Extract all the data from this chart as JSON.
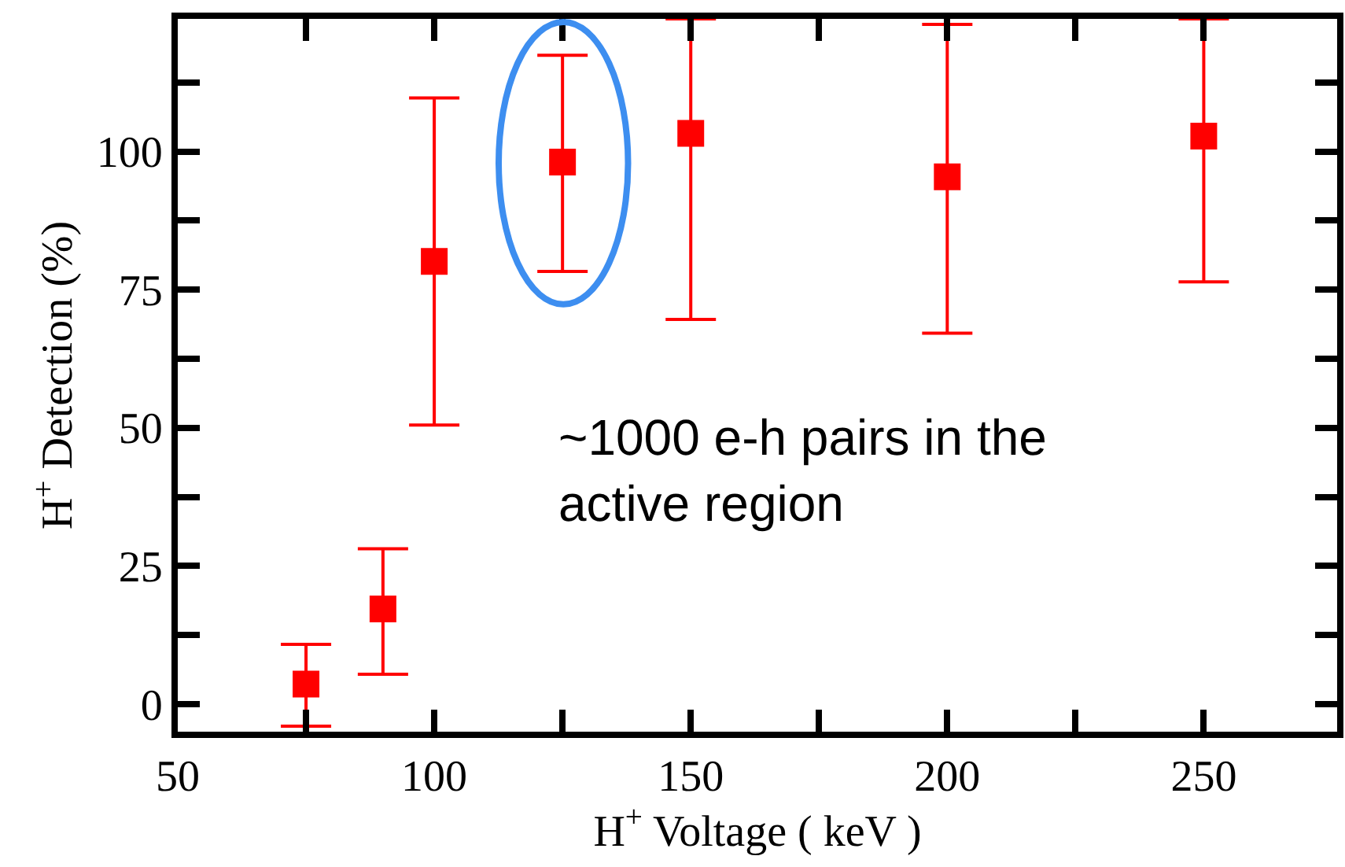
{
  "chart_data": {
    "type": "scatter",
    "xlabel": "H$^{+}$ Voltage ( keV )",
    "ylabel": "H$^{+}$ Detection (%)",
    "x": [
      75,
      90,
      100,
      125,
      150,
      200,
      250
    ],
    "series": [
      {
        "color": "#ff0000",
        "values": [
          3.6,
          17.2,
          80.1,
          98.1,
          103.3,
          95.4,
          102.8
        ],
        "errors": [
          [
            -4,
            10.8
          ],
          [
            5.4,
            28.1
          ],
          [
            50.5,
            109.7
          ],
          [
            78.3,
            117.4
          ],
          [
            69.6,
            124
          ],
          [
            67.1,
            123
          ],
          [
            76.4,
            124
          ]
        ]
      }
    ],
    "xlim": [
      50,
      276
    ],
    "ylim": [
      -5,
      124
    ],
    "xticks": [
      50,
      {
        "value": 75,
        "label": null
      },
      100,
      {
        "value": 125,
        "label": null
      },
      150,
      {
        "value": 175,
        "label": null
      },
      200,
      {
        "value": 225,
        "label": null
      },
      250
    ],
    "yticks": [
      0,
      {
        "value": 12.5,
        "label": null
      },
      25,
      {
        "value": 37.5,
        "label": null
      },
      50,
      {
        "value": 62.5,
        "label": null
      },
      75,
      {
        "value": 87.5,
        "label": null
      },
      100,
      {
        "value": 112.5,
        "label": null
      }
    ],
    "marker": "square",
    "annotations": [
      "~1000 e-h pairs in the active region"
    ]
  }
}
